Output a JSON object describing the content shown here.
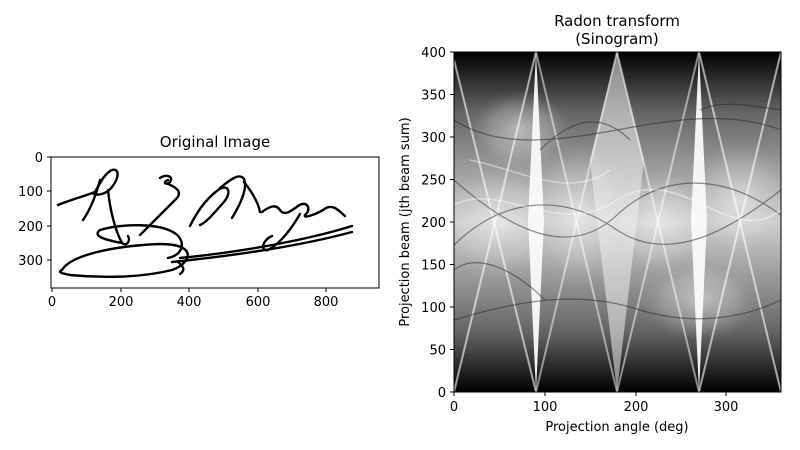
{
  "chart_data": [
    {
      "type": "image",
      "title": "Original Image",
      "xlabel": "",
      "ylabel": "",
      "xlim": [
        0,
        950
      ],
      "ylim": [
        380,
        0
      ],
      "xticks": [
        "0",
        "200",
        "400",
        "600",
        "800"
      ],
      "yticks": [
        "0",
        "100",
        "200",
        "300"
      ],
      "colormap": "gray",
      "content": "handwritten signature",
      "signature_text": "R G Mugabe"
    },
    {
      "type": "heatmap",
      "title": "Radon transform\n(Sinogram)",
      "title_lines": [
        "Radon transform",
        "(Sinogram)"
      ],
      "xlabel": "Projection angle (deg)",
      "ylabel": "Projection beam (jth beam sum)",
      "xlim": [
        0,
        360
      ],
      "ylim": [
        0,
        400
      ],
      "xticks": [
        "0",
        "100",
        "200",
        "300"
      ],
      "yticks": [
        "0",
        "50",
        "100",
        "150",
        "200",
        "250",
        "300",
        "350",
        "400"
      ],
      "colormap": "gray",
      "bright_angles": [
        90,
        180,
        270
      ]
    }
  ]
}
